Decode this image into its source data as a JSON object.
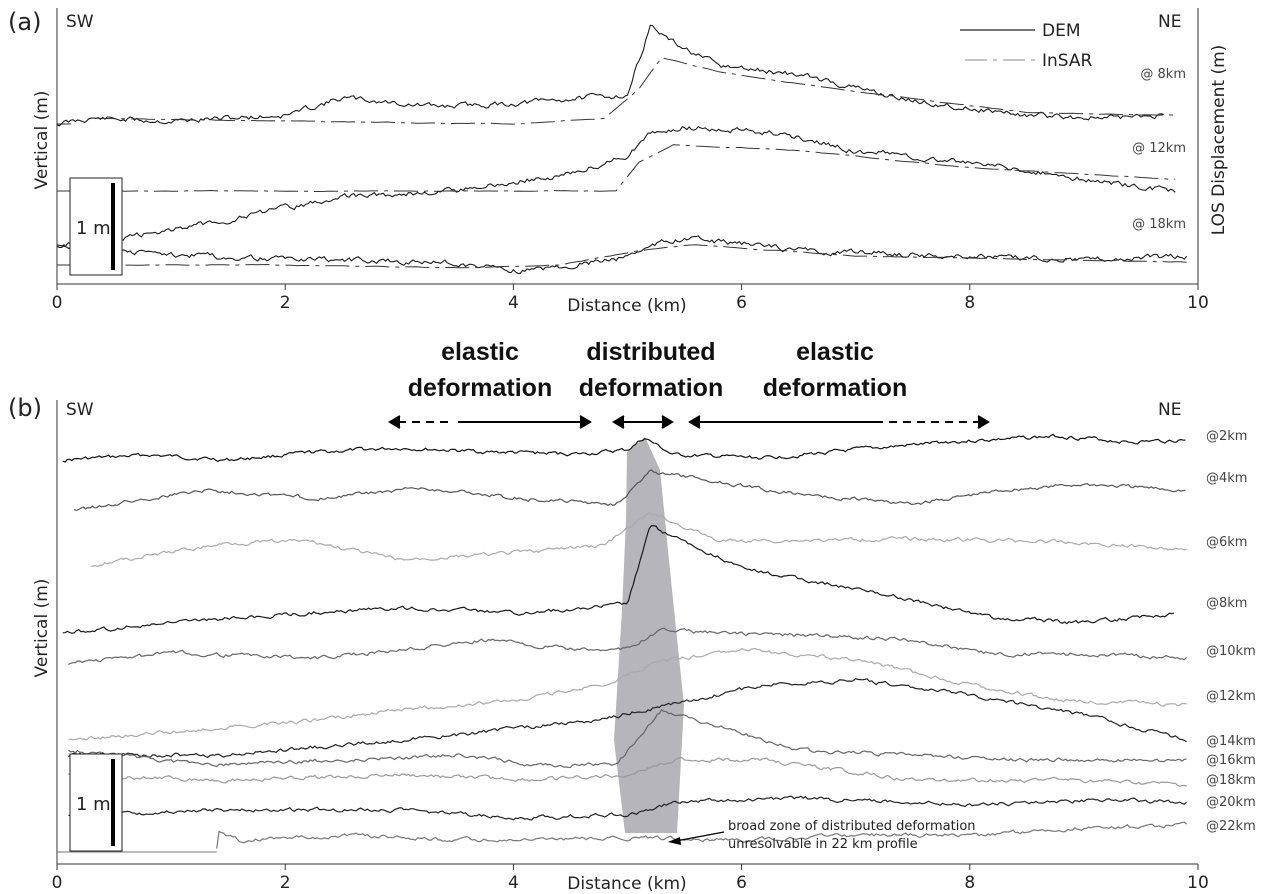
{
  "chart_data": [
    {
      "panel": "(a)",
      "type": "line",
      "xlabel": "Distance (km)",
      "ylabel": "Vertical (m)",
      "ylabel_right": "LOS Displacement (m)",
      "xlim": [
        0,
        10
      ],
      "xticks": [
        "0",
        "2",
        "4",
        "6",
        "8",
        "10"
      ],
      "left_end": "SW",
      "right_end": "NE",
      "legend": [
        "DEM",
        "InSAR"
      ],
      "legend_position": "top-right",
      "scale_bar": "1 m",
      "profiles": [
        {
          "label": "@ 8km",
          "baseline": 0.0,
          "dem": [
            [
              0,
              0.0
            ],
            [
              0.3,
              0.1
            ],
            [
              1,
              0.05
            ],
            [
              2,
              0.15
            ],
            [
              2.5,
              0.45
            ],
            [
              3.3,
              0.3
            ],
            [
              4,
              0.35
            ],
            [
              4.6,
              0.45
            ],
            [
              5,
              0.5
            ],
            [
              5.2,
              1.7
            ],
            [
              5.4,
              1.4
            ],
            [
              5.8,
              1.0
            ],
            [
              6.5,
              0.85
            ],
            [
              7.5,
              0.4
            ],
            [
              8.5,
              0.15
            ],
            [
              9.2,
              0.1
            ],
            [
              9.7,
              0.15
            ]
          ],
          "insar": [
            [
              0.3,
              0.1
            ],
            [
              2,
              0.05
            ],
            [
              4,
              0.0
            ],
            [
              4.8,
              0.1
            ],
            [
              5.1,
              0.6
            ],
            [
              5.3,
              1.15
            ],
            [
              5.8,
              0.9
            ],
            [
              7,
              0.55
            ],
            [
              8.5,
              0.2
            ],
            [
              9.8,
              0.15
            ]
          ]
        },
        {
          "label": "@ 12km",
          "baseline": -1.0,
          "dem": [
            [
              0,
              -1.9
            ],
            [
              0.6,
              -1.8
            ],
            [
              1.5,
              -1.5
            ],
            [
              2.5,
              -1.1
            ],
            [
              3.5,
              -1.0
            ],
            [
              4.5,
              -0.7
            ],
            [
              5,
              -0.4
            ],
            [
              5.2,
              0.0
            ],
            [
              5.5,
              0.1
            ],
            [
              6.3,
              0.0
            ],
            [
              7,
              -0.3
            ],
            [
              8,
              -0.5
            ],
            [
              9,
              -0.8
            ],
            [
              9.8,
              -1.0
            ]
          ],
          "insar": [
            [
              0.5,
              -1.0
            ],
            [
              2,
              -1.0
            ],
            [
              4,
              -1.0
            ],
            [
              4.9,
              -1.0
            ],
            [
              5.1,
              -0.5
            ],
            [
              5.4,
              -0.2
            ],
            [
              6.5,
              -0.3
            ],
            [
              8,
              -0.6
            ],
            [
              9.8,
              -0.8
            ]
          ]
        },
        {
          "label": "@ 18km",
          "baseline": -2.0,
          "dem": [
            [
              0,
              -1.7
            ],
            [
              0.8,
              -1.8
            ],
            [
              2,
              -1.9
            ],
            [
              3.4,
              -1.95
            ],
            [
              4.1,
              -2.1
            ],
            [
              4.9,
              -1.9
            ],
            [
              5.3,
              -1.6
            ],
            [
              5.6,
              -1.55
            ],
            [
              6.5,
              -1.75
            ],
            [
              8,
              -1.85
            ],
            [
              9,
              -1.9
            ],
            [
              9.9,
              -1.85
            ]
          ],
          "insar": [
            [
              0.6,
              -2.0
            ],
            [
              2,
              -2.0
            ],
            [
              3.5,
              -2.05
            ],
            [
              4.4,
              -2.0
            ],
            [
              5.1,
              -1.75
            ],
            [
              5.6,
              -1.65
            ],
            [
              7,
              -1.85
            ],
            [
              8.5,
              -1.9
            ],
            [
              9.9,
              -1.95
            ]
          ]
        }
      ]
    },
    {
      "panel": "(b)",
      "type": "line",
      "xlabel": "Distance (km)",
      "ylabel": "Vertical (m)",
      "xlim": [
        0,
        10
      ],
      "xticks": [
        "0",
        "2",
        "4",
        "6",
        "8",
        "10"
      ],
      "left_end": "SW",
      "right_end": "NE",
      "scale_bar": "1 m",
      "zones": [
        {
          "label_line1": "elastic",
          "label_line2": "deformation",
          "x_from": 2.9,
          "x_to": 4.7
        },
        {
          "label_line1": "distributed",
          "label_line2": "deformation",
          "x_from": 4.95,
          "x_to": 5.4
        },
        {
          "label_line1": "elastic",
          "label_line2": "deformation",
          "x_from": 5.55,
          "x_to": 8.1
        }
      ],
      "profiles": [
        "@2km",
        "@4km",
        "@6km",
        "@8km",
        "@10km",
        "@12km",
        "@14km",
        "@16km",
        "@18km",
        "@20km",
        "@22km"
      ],
      "annotation_line1": "broad zone of distributed deformation",
      "annotation_line2": "unresolvable in 22 km profile"
    }
  ]
}
